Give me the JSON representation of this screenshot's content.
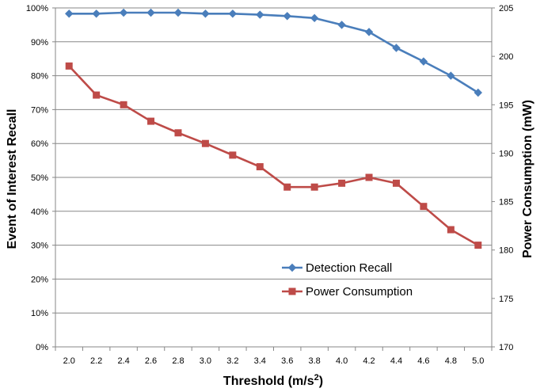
{
  "chart_data": {
    "type": "line",
    "x": [
      2.0,
      2.2,
      2.4,
      2.6,
      2.8,
      3.0,
      3.2,
      3.4,
      3.6,
      3.8,
      4.0,
      4.2,
      4.4,
      4.6,
      4.8,
      5.0
    ],
    "x_tick_labels": [
      "2.0",
      "2.2",
      "2.4",
      "2.6",
      "2.8",
      "3.0",
      "3.2",
      "3.4",
      "3.6",
      "3.8",
      "4.0",
      "4.2",
      "4.4",
      "4.6",
      "4.8",
      "5.0"
    ],
    "xlabel_main": "Threshold  (m/s",
    "xlabel_sup": "2",
    "xlabel_end": ")",
    "ylabel_left": "Event of Interest Recall",
    "ylabel_right": "Power Consumption  (mW)",
    "ylim_left": [
      0,
      100
    ],
    "ylim_right": [
      170,
      205
    ],
    "y_left_ticks": [
      "0%",
      "10%",
      "20%",
      "30%",
      "40%",
      "50%",
      "60%",
      "70%",
      "80%",
      "90%",
      "100%"
    ],
    "y_right_ticks": [
      "170",
      "175",
      "180",
      "185",
      "190",
      "195",
      "200",
      "205"
    ],
    "grid": true,
    "legend_position": "lower-center",
    "series": [
      {
        "name": "Detection Recall",
        "axis": "left",
        "color": "#4a7ebb",
        "marker": "diamond",
        "values": [
          98.3,
          98.3,
          98.6,
          98.6,
          98.6,
          98.3,
          98.3,
          98.0,
          97.6,
          97.0,
          95.0,
          92.9,
          88.2,
          84.2,
          80.0,
          75.0
        ]
      },
      {
        "name": "Power Consumption",
        "axis": "right",
        "color": "#be4b48",
        "marker": "square",
        "values": [
          199.0,
          196.0,
          195.0,
          193.3,
          192.1,
          191.0,
          189.8,
          188.6,
          186.5,
          186.5,
          186.9,
          187.5,
          186.9,
          184.5,
          182.1,
          180.5
        ]
      }
    ]
  }
}
